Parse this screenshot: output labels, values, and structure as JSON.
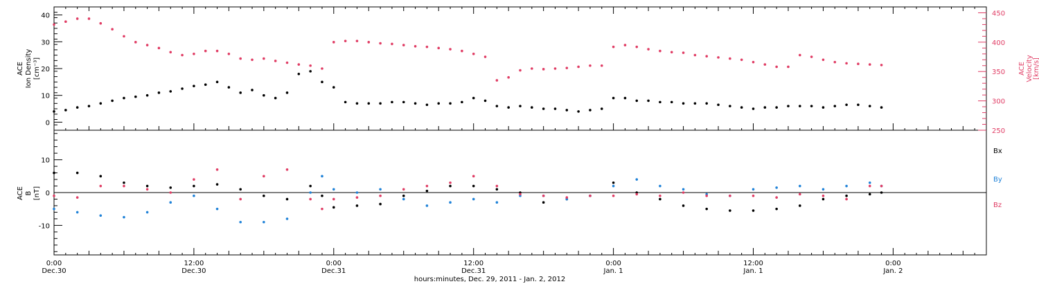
{
  "chart_data": [
    {
      "type": "scatter",
      "panel": "ion-density-velocity",
      "ylabel_left": [
        "ACE",
        "Ion Density",
        "[cm⁻³]"
      ],
      "ylabel_right": [
        "ACE",
        "Velocity",
        "[km/s]"
      ],
      "ylim_left": [
        -3,
        43
      ],
      "ylim_right": [
        250,
        460
      ],
      "yticks_left": [
        0,
        10,
        20,
        30,
        40
      ],
      "yticks_right": [
        250,
        300,
        350,
        400,
        450
      ],
      "series": [
        {
          "axis": "left",
          "color": "#000000",
          "points": [
            [
              0,
              4
            ],
            [
              1,
              4.5
            ],
            [
              2,
              5.5
            ],
            [
              3,
              6
            ],
            [
              4,
              7
            ],
            [
              5,
              8
            ],
            [
              6,
              9
            ],
            [
              7,
              9.5
            ],
            [
              8,
              10
            ],
            [
              9,
              11
            ],
            [
              10,
              11.5
            ],
            [
              11,
              12.5
            ],
            [
              12,
              13.5
            ],
            [
              13,
              14
            ],
            [
              14,
              15
            ],
            [
              15,
              13
            ],
            [
              16,
              11
            ],
            [
              17,
              12
            ],
            [
              18,
              10
            ],
            [
              19,
              9
            ],
            [
              20,
              11
            ],
            [
              21,
              18
            ],
            [
              22,
              19
            ],
            [
              23,
              15
            ],
            [
              24,
              13
            ],
            [
              25,
              7.5
            ],
            [
              26,
              7
            ],
            [
              27,
              7
            ],
            [
              28,
              7
            ],
            [
              29,
              7.5
            ],
            [
              30,
              7.5
            ],
            [
              31,
              7
            ],
            [
              32,
              6.5
            ],
            [
              33,
              7
            ],
            [
              34,
              7
            ],
            [
              35,
              7.5
            ],
            [
              36,
              9
            ],
            [
              37,
              8
            ],
            [
              38,
              6
            ],
            [
              39,
              5.5
            ],
            [
              40,
              6
            ],
            [
              41,
              5.5
            ],
            [
              42,
              5
            ],
            [
              43,
              5
            ],
            [
              44,
              4.5
            ],
            [
              45,
              4
            ],
            [
              46,
              4.5
            ],
            [
              47,
              5
            ],
            [
              48,
              9
            ],
            [
              49,
              9
            ],
            [
              50,
              8
            ],
            [
              51,
              8
            ],
            [
              52,
              7.5
            ],
            [
              53,
              7.5
            ],
            [
              54,
              7
            ],
            [
              55,
              7
            ],
            [
              56,
              7
            ],
            [
              57,
              6.5
            ],
            [
              58,
              6
            ],
            [
              59,
              5.5
            ],
            [
              60,
              5
            ],
            [
              61,
              5.5
            ],
            [
              62,
              5.5
            ],
            [
              63,
              6
            ],
            [
              64,
              6
            ],
            [
              65,
              6
            ],
            [
              66,
              5.5
            ],
            [
              67,
              6
            ],
            [
              68,
              6.5
            ],
            [
              69,
              6.5
            ],
            [
              70,
              6
            ],
            [
              71,
              5.5
            ]
          ]
        },
        {
          "axis": "right",
          "color": "#e03c64",
          "points": [
            [
              0,
              430
            ],
            [
              1,
              435
            ],
            [
              2,
              440
            ],
            [
              3,
              440
            ],
            [
              4,
              432
            ],
            [
              5,
              422
            ],
            [
              6,
              410
            ],
            [
              7,
              400
            ],
            [
              8,
              395
            ],
            [
              9,
              390
            ],
            [
              10,
              383
            ],
            [
              11,
              378
            ],
            [
              12,
              380
            ],
            [
              13,
              385
            ],
            [
              14,
              385
            ],
            [
              15,
              380
            ],
            [
              16,
              372
            ],
            [
              17,
              370
            ],
            [
              18,
              372
            ],
            [
              19,
              368
            ],
            [
              20,
              365
            ],
            [
              21,
              362
            ],
            [
              22,
              360
            ],
            [
              23,
              355
            ],
            [
              24,
              400
            ],
            [
              25,
              402
            ],
            [
              26,
              402
            ],
            [
              27,
              400
            ],
            [
              28,
              398
            ],
            [
              29,
              397
            ],
            [
              30,
              395
            ],
            [
              31,
              393
            ],
            [
              32,
              392
            ],
            [
              33,
              390
            ],
            [
              34,
              388
            ],
            [
              35,
              385
            ],
            [
              36,
              380
            ],
            [
              37,
              375
            ],
            [
              38,
              335
            ],
            [
              39,
              340
            ],
            [
              40,
              352
            ],
            [
              41,
              355
            ],
            [
              42,
              354
            ],
            [
              43,
              355
            ],
            [
              44,
              356
            ],
            [
              45,
              358
            ],
            [
              46,
              360
            ],
            [
              47,
              360
            ],
            [
              48,
              392
            ],
            [
              49,
              395
            ],
            [
              50,
              392
            ],
            [
              51,
              388
            ],
            [
              52,
              385
            ],
            [
              53,
              383
            ],
            [
              54,
              382
            ],
            [
              55,
              378
            ],
            [
              56,
              376
            ],
            [
              57,
              374
            ],
            [
              58,
              372
            ],
            [
              59,
              370
            ],
            [
              60,
              366
            ],
            [
              61,
              362
            ],
            [
              62,
              358
            ],
            [
              63,
              358
            ],
            [
              64,
              378
            ],
            [
              65,
              375
            ],
            [
              66,
              370
            ],
            [
              67,
              366
            ],
            [
              68,
              364
            ],
            [
              69,
              363
            ],
            [
              70,
              362
            ],
            [
              71,
              361
            ]
          ]
        }
      ]
    },
    {
      "type": "scatter",
      "panel": "magnetic-field",
      "ylabel": [
        "ACE",
        "B",
        "[nT]"
      ],
      "ylim": [
        -19,
        19
      ],
      "yticks": [
        -10,
        0,
        10
      ],
      "zero_line": true,
      "legend": [
        "Bx",
        "By",
        "Bz"
      ],
      "series": [
        {
          "name": "Bx",
          "color": "#000000",
          "points": [
            [
              0,
              6
            ],
            [
              2,
              6
            ],
            [
              4,
              5
            ],
            [
              6,
              3
            ],
            [
              8,
              2
            ],
            [
              10,
              1.5
            ],
            [
              12,
              2
            ],
            [
              14,
              2.5
            ],
            [
              16,
              1
            ],
            [
              18,
              -1
            ],
            [
              20,
              -2
            ],
            [
              22,
              2
            ],
            [
              23,
              -1
            ],
            [
              24,
              -4.5
            ],
            [
              26,
              -4
            ],
            [
              28,
              -3.5
            ],
            [
              30,
              -1
            ],
            [
              32,
              0.5
            ],
            [
              34,
              2
            ],
            [
              36,
              2
            ],
            [
              38,
              1
            ],
            [
              40,
              0
            ],
            [
              42,
              -3
            ],
            [
              44,
              -2
            ],
            [
              46,
              -1
            ],
            [
              48,
              3
            ],
            [
              50,
              0
            ],
            [
              52,
              -2
            ],
            [
              54,
              -4
            ],
            [
              56,
              -5
            ],
            [
              58,
              -5.5
            ],
            [
              60,
              -5.5
            ],
            [
              62,
              -5
            ],
            [
              64,
              -4
            ],
            [
              66,
              -2
            ],
            [
              68,
              -1
            ],
            [
              70,
              -0.5
            ],
            [
              71,
              0
            ]
          ]
        },
        {
          "name": "By",
          "color": "#1f82d8",
          "points": [
            [
              0,
              -5
            ],
            [
              2,
              -6
            ],
            [
              4,
              -7
            ],
            [
              6,
              -7.5
            ],
            [
              8,
              -6
            ],
            [
              10,
              -3
            ],
            [
              12,
              -1
            ],
            [
              14,
              -5
            ],
            [
              16,
              -9
            ],
            [
              18,
              -9
            ],
            [
              20,
              -8
            ],
            [
              22,
              0
            ],
            [
              23,
              5
            ],
            [
              24,
              1
            ],
            [
              26,
              0
            ],
            [
              28,
              1
            ],
            [
              30,
              -2
            ],
            [
              32,
              -4
            ],
            [
              34,
              -3
            ],
            [
              36,
              -2
            ],
            [
              38,
              -3
            ],
            [
              40,
              -1
            ],
            [
              42,
              -1
            ],
            [
              44,
              -2
            ],
            [
              46,
              -1
            ],
            [
              48,
              2
            ],
            [
              50,
              4
            ],
            [
              52,
              2
            ],
            [
              54,
              1
            ],
            [
              56,
              -0.5
            ],
            [
              58,
              -1
            ],
            [
              60,
              1
            ],
            [
              62,
              1.5
            ],
            [
              64,
              2
            ],
            [
              66,
              1
            ],
            [
              68,
              2
            ],
            [
              70,
              3
            ],
            [
              71,
              2
            ]
          ]
        },
        {
          "name": "Bz",
          "color": "#e03c64",
          "points": [
            [
              0,
              -1
            ],
            [
              2,
              -1.5
            ],
            [
              4,
              2
            ],
            [
              6,
              2
            ],
            [
              8,
              1
            ],
            [
              10,
              0
            ],
            [
              12,
              4
            ],
            [
              14,
              7
            ],
            [
              16,
              -2
            ],
            [
              18,
              5
            ],
            [
              20,
              7
            ],
            [
              22,
              -2
            ],
            [
              23,
              -5
            ],
            [
              24,
              -2
            ],
            [
              26,
              -1.5
            ],
            [
              28,
              -1
            ],
            [
              30,
              1
            ],
            [
              32,
              2
            ],
            [
              34,
              3
            ],
            [
              36,
              5
            ],
            [
              38,
              2
            ],
            [
              40,
              -0.5
            ],
            [
              42,
              -1
            ],
            [
              44,
              -1.5
            ],
            [
              46,
              -1
            ],
            [
              48,
              -1
            ],
            [
              50,
              -0.5
            ],
            [
              52,
              -1
            ],
            [
              54,
              0
            ],
            [
              56,
              -1
            ],
            [
              58,
              -1
            ],
            [
              60,
              -1
            ],
            [
              62,
              -1.5
            ],
            [
              64,
              -0.5
            ],
            [
              66,
              -1
            ],
            [
              68,
              -2
            ],
            [
              70,
              2
            ],
            [
              71,
              2
            ]
          ]
        }
      ]
    }
  ],
  "xaxis": {
    "range_hours": [
      0,
      80
    ],
    "ticks": [
      {
        "hour": 0,
        "time": "0:00",
        "date": "Dec.30"
      },
      {
        "hour": 12,
        "time": "12:00",
        "date": "Dec.30"
      },
      {
        "hour": 24,
        "time": "0:00",
        "date": "Dec.31"
      },
      {
        "hour": 36,
        "time": "12:00",
        "date": "Dec.31"
      },
      {
        "hour": 48,
        "time": "0:00",
        "date": "Jan. 1"
      },
      {
        "hour": 60,
        "time": "12:00",
        "date": "Jan. 1"
      },
      {
        "hour": 72,
        "time": "0:00",
        "date": "Jan. 2"
      }
    ],
    "xlabel": "hours:minutes, Dec. 29, 2011 - Jan. 2, 2012"
  },
  "colors": {
    "black": "#000000",
    "blue": "#1f82d8",
    "pink": "#e03c64"
  }
}
